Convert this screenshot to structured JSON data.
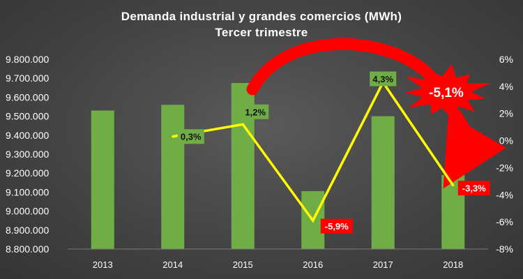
{
  "chart_data": {
    "type": "bar",
    "title": "Demanda industrial  y grandes comercios  (MWh)",
    "subtitle": "Tercer trimestre",
    "categories": [
      "2013",
      "2014",
      "2015",
      "2016",
      "2017",
      "2018"
    ],
    "series": [
      {
        "type": "bar",
        "axis": "left",
        "values": [
          9530000,
          9560000,
          9675000,
          9105000,
          9500000,
          9190000
        ]
      },
      {
        "type": "line",
        "axis": "right",
        "values": [
          null,
          0.3,
          1.2,
          -5.9,
          4.3,
          -3.3
        ],
        "labels": [
          "",
          "0,3%",
          "1,2%",
          "-5,9%",
          "4,3%",
          "-3,3%"
        ]
      }
    ],
    "left_axis": {
      "ylim": [
        8800000,
        9800000
      ],
      "ticks": [
        8800000,
        8900000,
        9000000,
        9100000,
        9200000,
        9300000,
        9400000,
        9500000,
        9600000,
        9700000,
        9800000
      ],
      "tick_labels": [
        "8.800.000",
        "8.900.000",
        "9.000.000",
        "9.100.000",
        "9.200.000",
        "9.300.000",
        "9.400.000",
        "9.500.000",
        "9.600.000",
        "9.700.000",
        "9.800.000"
      ]
    },
    "right_axis": {
      "ylim": [
        -8,
        6
      ],
      "ticks": [
        -8,
        -6,
        -4,
        -2,
        0,
        2,
        4,
        6
      ],
      "tick_labels": [
        "-8%",
        "-6%",
        "-4%",
        "-2%",
        "0%",
        "2%",
        "4%",
        "6%"
      ]
    },
    "annotation": {
      "text": "-5,1%"
    },
    "grid": false,
    "colors": {
      "bar": "#70ad47",
      "line": "#ffff00",
      "label_positive_bg": "#70ad47",
      "label_negative_bg": "#ff0000",
      "arrow": "#ff0000",
      "burst": "#ff0000"
    }
  }
}
